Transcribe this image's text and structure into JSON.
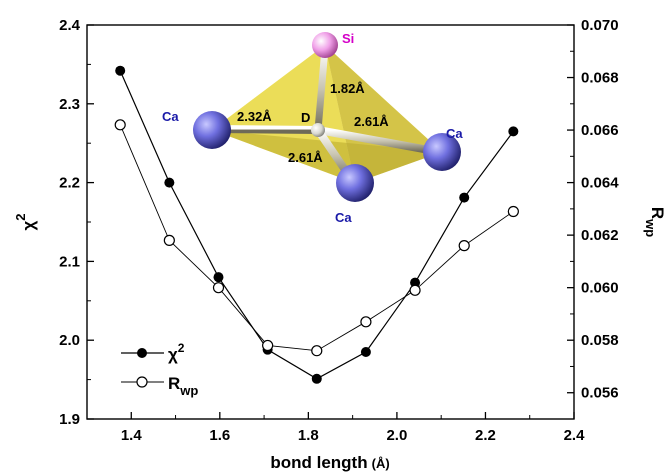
{
  "chart_data": {
    "type": "line",
    "xlabel": "bond length",
    "xlabel_unit": "(Å)",
    "ylabel_left": "χ",
    "ylabel_left_sup": "2",
    "ylabel_right": "R",
    "ylabel_right_sub": "wp",
    "xlim": [
      1.3,
      2.4
    ],
    "ylim_left": [
      1.9,
      2.4
    ],
    "ylim_right": [
      0.055,
      0.07
    ],
    "x_ticks": [
      "1.4",
      "1.6",
      "1.8",
      "2.0",
      "2.2",
      "2.4"
    ],
    "y_left_ticks": [
      "1.9",
      "2.0",
      "2.1",
      "2.2",
      "2.3",
      "2.4"
    ],
    "y_right_ticks": [
      "0.056",
      "0.058",
      "0.060",
      "0.062",
      "0.064",
      "0.066",
      "0.068",
      "0.070"
    ],
    "x": [
      1.375,
      1.486,
      1.597,
      1.708,
      1.819,
      1.93,
      2.041,
      2.152,
      2.263
    ],
    "series": [
      {
        "name": "χ",
        "name_sup": "2",
        "axis": "left",
        "marker": "filled-circle",
        "values": [
          2.342,
          2.2,
          2.08,
          1.988,
          1.951,
          1.985,
          2.073,
          2.181,
          2.265
        ]
      },
      {
        "name": "R",
        "name_sub": "wp",
        "axis": "right",
        "marker": "open-circle",
        "values": [
          0.0662,
          0.0618,
          0.06,
          0.0578,
          0.0576,
          0.0587,
          0.0599,
          0.0616,
          0.0629
        ]
      }
    ],
    "legend_position": "bottom-left",
    "inset": {
      "atom_labels": {
        "si": "Si",
        "ca": "Ca",
        "center": "D"
      },
      "bond_labels": [
        "2.32Å",
        "1.82Å",
        "2.61Å",
        "2.61Å"
      ]
    }
  }
}
